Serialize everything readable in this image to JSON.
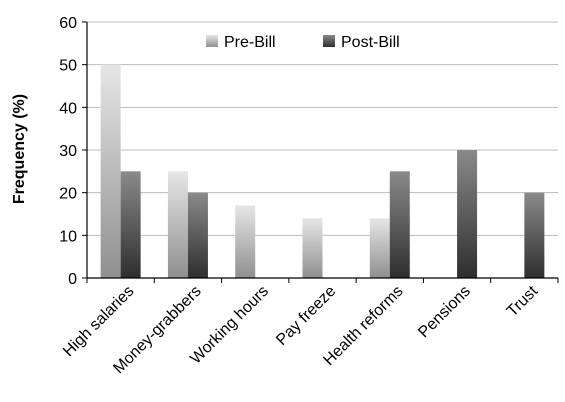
{
  "chart_data": {
    "type": "bar",
    "ylabel": "Frequency  (%)",
    "xlabel": "",
    "title": "",
    "ylim": [
      0,
      60
    ],
    "yticks": [
      0,
      10,
      20,
      30,
      40,
      50,
      60
    ],
    "grid": true,
    "legend_position": "top",
    "categories": [
      "High salaries",
      "Money-grabbers",
      "Working hours",
      "Pay freeze",
      "Health reforms",
      "Pensions",
      "Trust"
    ],
    "series": [
      {
        "name": "Pre-Bill",
        "values": [
          50,
          25,
          17,
          14,
          14,
          0,
          0
        ],
        "color": "#b3b3b3"
      },
      {
        "name": "Post-Bill",
        "values": [
          25,
          20,
          0,
          0,
          25,
          30,
          20
        ],
        "color": "#4a4a4a"
      }
    ]
  }
}
